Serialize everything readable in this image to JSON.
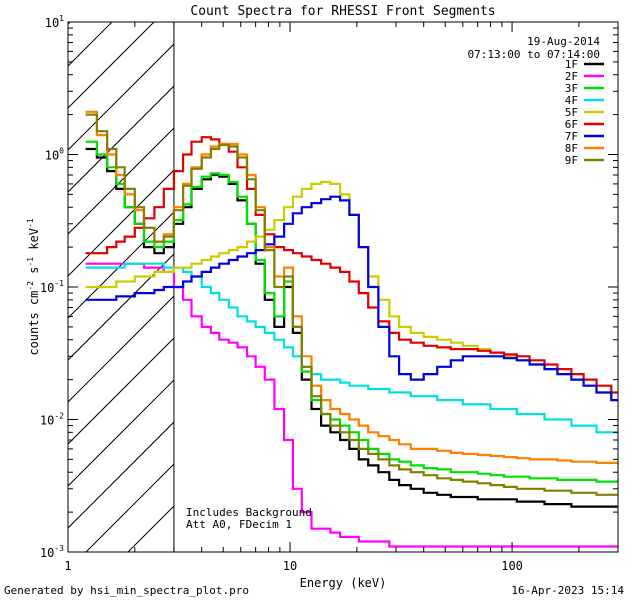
{
  "chart_data": {
    "type": "line",
    "title": "Count Spectra for RHESSI Front Segments",
    "xlabel": "Energy (keV)",
    "ylabel": "counts cm",
    "ylabel_sup1": "-2",
    "ylabel_mid": " s",
    "ylabel_sup2": "-1",
    "ylabel_unit": " keV",
    "ylabel_sup3": "-1",
    "xscale": "log",
    "yscale": "log",
    "xlim": [
      1,
      300
    ],
    "ylim": [
      0.001,
      10
    ],
    "x_ticks": [
      {
        "value": 1,
        "label": "1"
      },
      {
        "value": 10,
        "label": "10"
      },
      {
        "value": 100,
        "label": "100"
      }
    ],
    "y_ticks": [
      {
        "value": 0.001,
        "base": "10",
        "exp": "-3"
      },
      {
        "value": 0.01,
        "base": "10",
        "exp": "-2"
      },
      {
        "value": 0.1,
        "base": "10",
        "exp": "-1"
      },
      {
        "value": 1,
        "base": "10",
        "exp": "0"
      },
      {
        "value": 10,
        "base": "10",
        "exp": "1"
      }
    ],
    "hatched_region_max_energy": 3,
    "date": "19-Aug-2014",
    "time_range": "07:13:00 to 07:14:00",
    "notes": [
      "Includes Background",
      "Att A0, FDecim 1"
    ],
    "energy_bins": [
      1.2,
      1.35,
      1.5,
      1.65,
      1.8,
      2.0,
      2.2,
      2.45,
      2.7,
      3.0,
      3.3,
      3.6,
      4.0,
      4.4,
      4.8,
      5.3,
      5.8,
      6.4,
      7.0,
      7.7,
      8.5,
      9.4,
      10.3,
      11.3,
      12.5,
      13.8,
      15.2,
      16.8,
      18.5,
      20.4,
      22.5,
      25,
      28,
      31,
      35,
      40,
      46,
      53,
      60,
      70,
      80,
      92,
      105,
      120,
      140,
      160,
      185,
      210,
      240,
      280
    ],
    "series": [
      {
        "name": "1F",
        "color": "#000000",
        "values": [
          1.1,
          0.95,
          0.75,
          0.55,
          0.4,
          0.3,
          0.2,
          0.18,
          0.2,
          0.3,
          0.4,
          0.55,
          0.65,
          0.7,
          0.68,
          0.6,
          0.45,
          0.3,
          0.15,
          0.08,
          0.05,
          0.1,
          0.045,
          0.02,
          0.012,
          0.009,
          0.008,
          0.007,
          0.006,
          0.005,
          0.0045,
          0.004,
          0.0035,
          0.0032,
          0.003,
          0.0028,
          0.0027,
          0.0026,
          0.0026,
          0.0025,
          0.0025,
          0.0025,
          0.0024,
          0.0024,
          0.0023,
          0.0023,
          0.0022,
          0.0022,
          0.0022,
          0.0022
        ]
      },
      {
        "name": "2F",
        "color": "#ff00ff",
        "values": [
          0.15,
          0.15,
          0.15,
          0.15,
          0.15,
          0.15,
          0.14,
          0.14,
          0.13,
          0.1,
          0.08,
          0.06,
          0.05,
          0.045,
          0.04,
          0.038,
          0.035,
          0.03,
          0.025,
          0.02,
          0.012,
          0.007,
          0.003,
          0.002,
          0.0015,
          0.0015,
          0.0014,
          0.0013,
          0.0013,
          0.0012,
          0.0012,
          0.0012,
          0.0011,
          0.0011,
          0.0011,
          0.0011,
          0.0011,
          0.0011,
          0.0011,
          0.0011,
          0.0011,
          0.0011,
          0.0011,
          0.0011,
          0.0011,
          0.0011,
          0.0011,
          0.0011,
          0.0011,
          0.0011
        ]
      },
      {
        "name": "3F",
        "color": "#00e000",
        "values": [
          1.25,
          1.0,
          0.8,
          0.6,
          0.4,
          0.3,
          0.22,
          0.2,
          0.22,
          0.32,
          0.42,
          0.57,
          0.68,
          0.72,
          0.7,
          0.62,
          0.48,
          0.3,
          0.16,
          0.09,
          0.06,
          0.11,
          0.05,
          0.023,
          0.014,
          0.011,
          0.01,
          0.009,
          0.008,
          0.007,
          0.006,
          0.0055,
          0.005,
          0.0048,
          0.0045,
          0.0043,
          0.0042,
          0.004,
          0.004,
          0.0039,
          0.0038,
          0.0037,
          0.0037,
          0.0036,
          0.0036,
          0.0035,
          0.0035,
          0.0035,
          0.0034,
          0.0034
        ]
      },
      {
        "name": "4F",
        "color": "#00e0e0",
        "values": [
          0.14,
          0.14,
          0.14,
          0.14,
          0.15,
          0.15,
          0.15,
          0.15,
          0.14,
          0.14,
          0.13,
          0.12,
          0.1,
          0.09,
          0.08,
          0.07,
          0.06,
          0.055,
          0.05,
          0.045,
          0.04,
          0.035,
          0.03,
          0.025,
          0.022,
          0.02,
          0.02,
          0.019,
          0.018,
          0.018,
          0.017,
          0.017,
          0.016,
          0.016,
          0.015,
          0.015,
          0.014,
          0.014,
          0.013,
          0.013,
          0.012,
          0.012,
          0.011,
          0.011,
          0.01,
          0.01,
          0.009,
          0.009,
          0.008,
          0.008
        ]
      },
      {
        "name": "5F",
        "color": "#cccc00",
        "values": [
          0.1,
          0.1,
          0.1,
          0.11,
          0.11,
          0.12,
          0.12,
          0.13,
          0.13,
          0.14,
          0.14,
          0.15,
          0.16,
          0.17,
          0.18,
          0.19,
          0.2,
          0.22,
          0.24,
          0.27,
          0.32,
          0.4,
          0.48,
          0.55,
          0.6,
          0.62,
          0.6,
          0.5,
          0.35,
          0.2,
          0.12,
          0.08,
          0.06,
          0.05,
          0.045,
          0.042,
          0.04,
          0.038,
          0.036,
          0.034,
          0.032,
          0.03,
          0.028,
          0.026,
          0.024,
          0.022,
          0.02,
          0.018,
          0.016,
          0.014
        ]
      },
      {
        "name": "6F",
        "color": "#e00000",
        "values": [
          0.18,
          0.18,
          0.2,
          0.22,
          0.24,
          0.28,
          0.33,
          0.4,
          0.55,
          0.75,
          1.0,
          1.25,
          1.35,
          1.3,
          1.2,
          1.05,
          0.8,
          0.55,
          0.35,
          0.25,
          0.2,
          0.19,
          0.18,
          0.17,
          0.16,
          0.15,
          0.14,
          0.13,
          0.11,
          0.09,
          0.07,
          0.055,
          0.045,
          0.04,
          0.038,
          0.036,
          0.035,
          0.034,
          0.034,
          0.033,
          0.032,
          0.031,
          0.03,
          0.028,
          0.026,
          0.024,
          0.022,
          0.02,
          0.018,
          0.016
        ]
      },
      {
        "name": "7F",
        "color": "#0000e0",
        "values": [
          0.08,
          0.08,
          0.08,
          0.085,
          0.085,
          0.09,
          0.09,
          0.095,
          0.1,
          0.1,
          0.11,
          0.12,
          0.13,
          0.14,
          0.15,
          0.16,
          0.17,
          0.18,
          0.19,
          0.21,
          0.24,
          0.3,
          0.36,
          0.4,
          0.43,
          0.46,
          0.48,
          0.45,
          0.35,
          0.2,
          0.1,
          0.05,
          0.03,
          0.022,
          0.02,
          0.022,
          0.025,
          0.028,
          0.03,
          0.03,
          0.03,
          0.029,
          0.028,
          0.026,
          0.024,
          0.022,
          0.02,
          0.018,
          0.016,
          0.014
        ]
      },
      {
        "name": "8F",
        "color": "#ff8000",
        "values": [
          2.1,
          1.4,
          1.0,
          0.7,
          0.5,
          0.38,
          0.28,
          0.22,
          0.25,
          0.4,
          0.6,
          0.8,
          1.0,
          1.15,
          1.2,
          1.2,
          1.0,
          0.7,
          0.4,
          0.2,
          0.12,
          0.14,
          0.06,
          0.03,
          0.018,
          0.014,
          0.012,
          0.011,
          0.01,
          0.009,
          0.008,
          0.0075,
          0.007,
          0.0065,
          0.006,
          0.006,
          0.0058,
          0.0056,
          0.0055,
          0.0054,
          0.0053,
          0.0052,
          0.0051,
          0.005,
          0.005,
          0.0049,
          0.0048,
          0.0048,
          0.0047,
          0.0047
        ]
      },
      {
        "name": "9F",
        "color": "#808000",
        "values": [
          2.0,
          1.5,
          1.1,
          0.8,
          0.55,
          0.4,
          0.28,
          0.22,
          0.24,
          0.38,
          0.58,
          0.78,
          0.95,
          1.1,
          1.18,
          1.15,
          0.95,
          0.65,
          0.38,
          0.19,
          0.1,
          0.12,
          0.05,
          0.025,
          0.015,
          0.011,
          0.009,
          0.008,
          0.007,
          0.006,
          0.0055,
          0.005,
          0.0045,
          0.0042,
          0.004,
          0.0038,
          0.0036,
          0.0035,
          0.0034,
          0.0033,
          0.0032,
          0.0031,
          0.003,
          0.003,
          0.0029,
          0.0029,
          0.0028,
          0.0028,
          0.0027,
          0.0027
        ]
      }
    ]
  },
  "footer": {
    "generated_by": "Generated by hsi_min_spectra_plot.pro",
    "timestamp": "16-Apr-2023 15:14"
  }
}
